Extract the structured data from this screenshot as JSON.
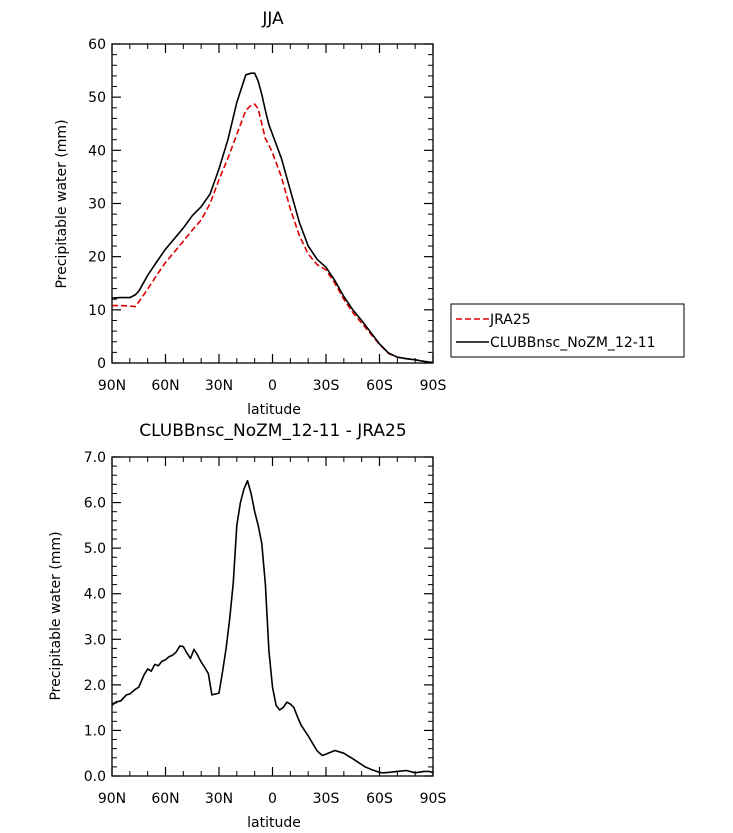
{
  "chart_data": [
    {
      "type": "line",
      "title": "JJA",
      "xlabel": "latitude",
      "ylabel": "Precipitable water (mm)",
      "xlim": [
        90,
        -90
      ],
      "ylim": [
        0,
        60
      ],
      "x_tick_labels": [
        "90N",
        "60N",
        "30N",
        "0",
        "30S",
        "60S",
        "90S"
      ],
      "y_tick_labels": [
        "0",
        "10",
        "20",
        "30",
        "40",
        "50",
        "60"
      ],
      "legend_position": "right",
      "series": [
        {
          "name": "JRA25",
          "color": "#e00000",
          "style": "dashed",
          "x": [
            90,
            85,
            80,
            77,
            75,
            70,
            65,
            60,
            55,
            50,
            45,
            40,
            35,
            30,
            25,
            20,
            15,
            12,
            10,
            8,
            6,
            4,
            2,
            0,
            -5,
            -10,
            -15,
            -20,
            -25,
            -30,
            -35,
            -40,
            -45,
            -50,
            -55,
            -60,
            -65,
            -70,
            -75,
            -80,
            -85,
            -90
          ],
          "y": [
            10.8,
            10.8,
            10.7,
            10.6,
            11.5,
            13.9,
            16.5,
            18.9,
            20.9,
            22.9,
            25.0,
            26.9,
            30.0,
            34.5,
            38.5,
            43.0,
            47.5,
            48.5,
            48.7,
            47.8,
            45.0,
            42.2,
            41.0,
            39.5,
            35.0,
            29.0,
            24.0,
            20.5,
            18.5,
            17.5,
            15.0,
            12.0,
            9.5,
            7.5,
            5.5,
            3.5,
            1.8,
            1.1,
            0.8,
            0.6,
            0.3,
            0.1
          ]
        },
        {
          "name": "CLUBBnsc_NoZM_12-11",
          "color": "#000000",
          "style": "solid",
          "x": [
            90,
            85,
            80,
            77,
            75,
            70,
            65,
            60,
            55,
            50,
            45,
            40,
            35,
            30,
            25,
            20,
            15,
            12,
            10,
            8,
            6,
            4,
            2,
            0,
            -5,
            -10,
            -15,
            -20,
            -25,
            -30,
            -35,
            -40,
            -45,
            -50,
            -55,
            -60,
            -65,
            -70,
            -75,
            -80,
            -85,
            -90
          ],
          "y": [
            12.2,
            12.3,
            12.3,
            12.8,
            13.5,
            16.5,
            19.0,
            21.4,
            23.4,
            25.4,
            27.7,
            29.4,
            31.8,
            36.5,
            42.0,
            49.0,
            54.2,
            54.5,
            54.5,
            53.0,
            50.5,
            47.5,
            44.8,
            43.0,
            38.5,
            32.5,
            26.5,
            22.0,
            19.5,
            18.0,
            15.5,
            12.5,
            10.0,
            8.0,
            5.8,
            3.6,
            1.9,
            1.1,
            0.8,
            0.6,
            0.3,
            0.1
          ]
        }
      ]
    },
    {
      "type": "line",
      "title": "CLUBBnsc_NoZM_12-11 - JRA25",
      "xlabel": "latitude",
      "ylabel": "Precipitable water (mm)",
      "xlim": [
        90,
        -90
      ],
      "ylim": [
        0,
        7
      ],
      "x_tick_labels": [
        "90N",
        "60N",
        "30N",
        "0",
        "30S",
        "60S",
        "90S"
      ],
      "y_tick_labels": [
        "0.0",
        "1.0",
        "2.0",
        "3.0",
        "4.0",
        "5.0",
        "6.0",
        "7.0"
      ],
      "series": [
        {
          "color": "#000000",
          "style": "solid",
          "x": [
            90,
            88,
            85,
            82,
            80,
            77,
            75,
            72,
            70,
            68,
            66,
            64,
            62,
            60,
            58,
            56,
            54,
            52,
            50,
            48,
            46,
            44,
            42,
            40,
            38,
            36,
            34,
            32,
            30,
            28,
            26,
            24,
            22,
            20,
            18,
            16,
            14,
            12,
            10,
            8,
            6,
            4,
            2,
            0,
            -2,
            -4,
            -6,
            -8,
            -10,
            -12,
            -14,
            -16,
            -18,
            -20,
            -22,
            -25,
            -28,
            -30,
            -35,
            -40,
            -42,
            -45,
            -48,
            -50,
            -52,
            -55,
            -60,
            -62,
            -65,
            -70,
            -75,
            -80,
            -85,
            -88,
            -90
          ],
          "y": [
            1.55,
            1.62,
            1.65,
            1.78,
            1.8,
            1.9,
            1.95,
            2.22,
            2.35,
            2.3,
            2.45,
            2.42,
            2.52,
            2.55,
            2.62,
            2.65,
            2.72,
            2.85,
            2.84,
            2.7,
            2.58,
            2.78,
            2.65,
            2.5,
            2.38,
            2.25,
            1.78,
            1.8,
            1.82,
            2.3,
            2.8,
            3.45,
            4.25,
            5.5,
            6.0,
            6.3,
            6.48,
            6.2,
            5.8,
            5.5,
            5.1,
            4.2,
            2.75,
            1.95,
            1.55,
            1.45,
            1.5,
            1.62,
            1.58,
            1.5,
            1.3,
            1.12,
            1.0,
            0.88,
            0.75,
            0.55,
            0.45,
            0.48,
            0.56,
            0.5,
            0.45,
            0.38,
            0.3,
            0.25,
            0.2,
            0.15,
            0.08,
            0.07,
            0.08,
            0.1,
            0.12,
            0.07,
            0.1,
            0.1,
            0.07
          ]
        }
      ]
    }
  ]
}
